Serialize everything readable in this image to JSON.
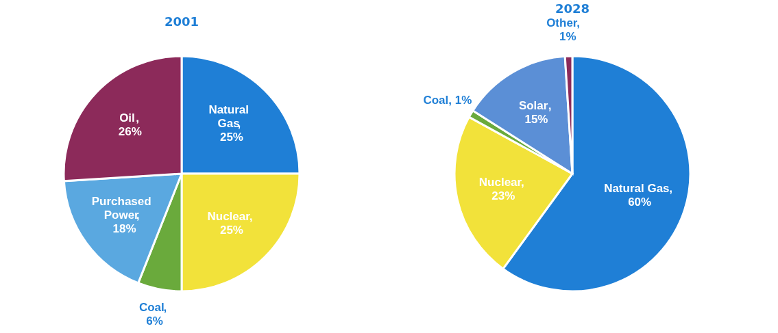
{
  "chart_data": [
    {
      "type": "pie",
      "title": "2001",
      "categories": [
        "Natural Gas",
        "Nuclear",
        "Coal",
        "Purchased Power",
        "Oil"
      ],
      "values": [
        25,
        25,
        6,
        18,
        26
      ],
      "colors": [
        "#1f7fd6",
        "#f2e23a",
        "#6aaa3c",
        "#5aa8e0",
        "#8c2a5a"
      ],
      "value_labels": [
        ", 25%",
        ", 25%",
        ", 6%",
        ", 18%",
        ", 26%"
      ],
      "legend": false
    },
    {
      "type": "pie",
      "title": "2028",
      "categories": [
        "Natural Gas",
        "Nuclear",
        "Coal",
        "Solar",
        "Other"
      ],
      "values": [
        60,
        23,
        1,
        15,
        1
      ],
      "colors": [
        "#1f7fd6",
        "#f2e23a",
        "#6aaa3c",
        "#5b8fd6",
        "#8c2a5a"
      ],
      "value_labels": [
        ", 60%",
        ", 23%",
        ", 1%",
        ", 15%",
        " , 1%"
      ],
      "legend": false
    }
  ]
}
